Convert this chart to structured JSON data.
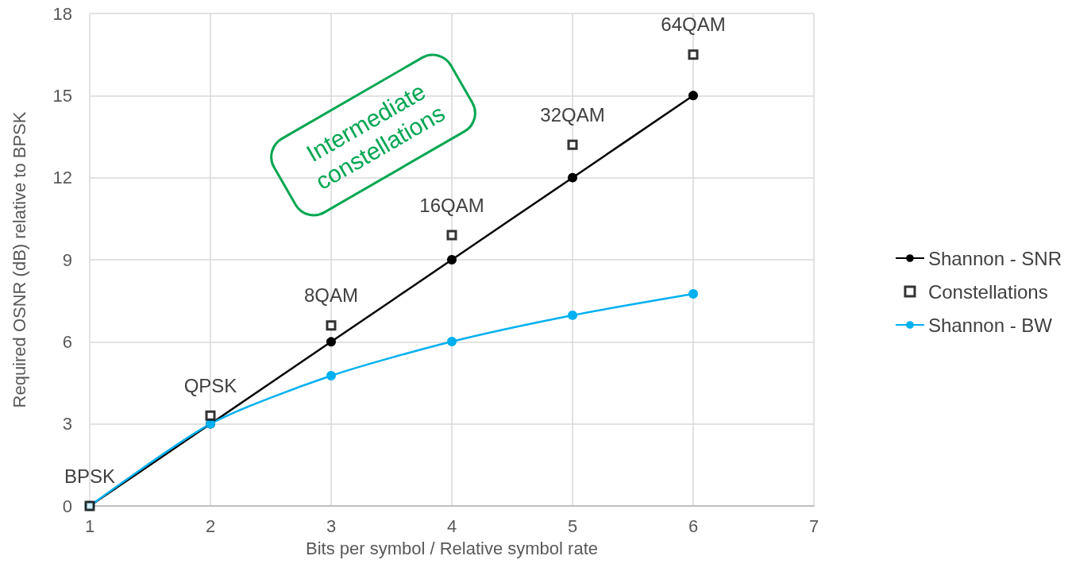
{
  "chart_data": {
    "type": "line",
    "xlabel": "Bits per symbol / Relative symbol rate",
    "ylabel": "Required OSNR (dB) relative to BPSK",
    "x": [
      1,
      2,
      3,
      4,
      5,
      6
    ],
    "xlim": [
      1,
      7
    ],
    "xticks": [
      1,
      2,
      3,
      4,
      5,
      6,
      7
    ],
    "ylim": [
      0,
      18
    ],
    "yticks": [
      0,
      3,
      6,
      9,
      12,
      15,
      18
    ],
    "grid": true,
    "legend": "right",
    "series": [
      {
        "name": "Shannon - SNR",
        "color": "#000000",
        "marker": "circle",
        "line_style": "solid",
        "values": [
          0,
          3,
          6,
          9,
          12,
          15
        ]
      },
      {
        "name": "Constellations",
        "type": "scatter",
        "color": "#000000",
        "marker": "square",
        "values": [
          0,
          3.3,
          6.6,
          9.9,
          13.2,
          16.5
        ]
      },
      {
        "name": "Shannon - BW",
        "color": "#00b0f0",
        "marker": "circle",
        "line_style": "solid",
        "values": [
          0,
          3,
          4.76,
          6.01,
          6.97,
          7.75
        ]
      }
    ],
    "annotations": [
      {
        "text": "BPSK",
        "x": 1,
        "y": 0
      },
      {
        "text": "QPSK",
        "x": 2,
        "y": 3.3
      },
      {
        "text": "8QAM",
        "x": 3,
        "y": 6.6
      },
      {
        "text": "16QAM",
        "x": 4,
        "y": 9.9
      },
      {
        "text": "32QAM",
        "x": 5,
        "y": 13.2
      },
      {
        "text": "64QAM",
        "x": 6,
        "y": 16.5
      },
      "Intermediate constellations"
    ]
  }
}
